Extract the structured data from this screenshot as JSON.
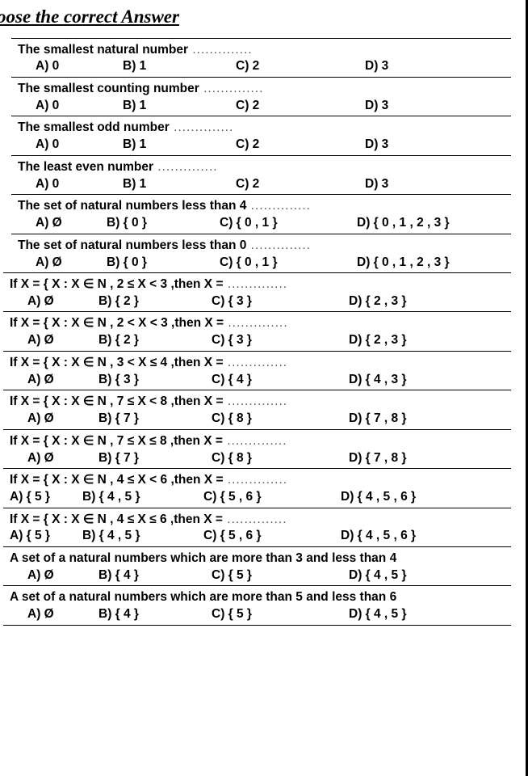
{
  "title": "oose the correct Answer",
  "dots": "..............",
  "questions": [
    {
      "q": "The smallest natural number",
      "a": "A) 0",
      "b": "B) 1",
      "c": "C) 2",
      "d": "D) 3",
      "layout": "std",
      "dots": true
    },
    {
      "q": "The smallest counting number",
      "a": "A) 0",
      "b": "B) 1",
      "c": "C) 2",
      "d": "D) 3",
      "layout": "std",
      "dots": true
    },
    {
      "q": "The smallest odd number",
      "a": "A) 0",
      "b": "B) 1",
      "c": "C) 2",
      "d": "D) 3",
      "layout": "std",
      "dots": true
    },
    {
      "q": "The least even number",
      "a": "A) 0",
      "b": "B) 1",
      "c": "C) 2",
      "d": "D) 3",
      "layout": "std",
      "dots": true
    },
    {
      "q": "The set of natural numbers less than 4",
      "a": "A) Ø",
      "b": "B) { 0 }",
      "c": "C) { 0 , 1 }",
      "d": "D) { 0 , 1 , 2 , 3 }",
      "layout": "wide",
      "dots": true
    },
    {
      "q": "The set of natural numbers less than 0",
      "a": "A) Ø",
      "b": "B) { 0 }",
      "c": "C) { 0 , 1 }",
      "d": "D) { 0 , 1 , 2 , 3 }",
      "layout": "wide",
      "dots": true
    },
    {
      "q": "If X = { X : X ∈ N , 2 ≤ X < 3 ,then X =",
      "a": "A) Ø",
      "b": "B) { 2 }",
      "c": "C) { 3 }",
      "d": "D) { 2 , 3 }",
      "layout": "wide2",
      "noleft": true,
      "dots": true
    },
    {
      "q": "If X = { X : X ∈ N , 2 < X < 3 ,then X =",
      "a": "A) Ø",
      "b": "B) { 2 }",
      "c": "C) { 3 }",
      "d": "D) { 2 , 3 }",
      "layout": "wide2",
      "noleft": true,
      "dots": true
    },
    {
      "q": "If X = { X : X ∈ N , 3 < X ≤ 4 ,then X =",
      "a": "A) Ø",
      "b": "B) { 3 }",
      "c": "C) { 4 }",
      "d": "D) { 4 , 3 }",
      "layout": "wide2",
      "noleft": true,
      "dots": true
    },
    {
      "q": "If X = { X : X ∈ N , 7 ≤ X < 8 ,then X =",
      "a": "A) Ø",
      "b": "B) { 7 }",
      "c": "C) { 8 }",
      "d": "D) { 7 , 8 }",
      "layout": "wide2",
      "noleft": true,
      "dots": true
    },
    {
      "q": "If X = { X : X ∈ N , 7 ≤ X ≤ 8 ,then X =",
      "a": "A) Ø",
      "b": "B) { 7 }",
      "c": "C) { 8 }",
      "d": "D) { 7 , 8 }",
      "layout": "wide2",
      "noleft": true,
      "dots": true
    },
    {
      "q": "If X = { X : X ∈ N , 4 ≤ X < 6 ,then X =",
      "a": "A) { 5 }",
      "b": "B) { 4 , 5 }",
      "c": "C) { 5 , 6 }",
      "d": "D) { 4 , 5 , 6 }",
      "layout": "noleftopt",
      "noleft": true,
      "dots": true
    },
    {
      "q": "If X = { X : X ∈ N , 4 ≤ X ≤ 6 ,then X =",
      "a": "A) { 5 }",
      "b": "B) { 4 , 5 }",
      "c": "C) { 5 , 6 }",
      "d": "D) { 4 , 5 , 6 }",
      "layout": "noleftopt",
      "noleft": true,
      "dots": true
    },
    {
      "q": "A set of a natural numbers which are more than 3 and less than 4",
      "a": "A) Ø",
      "b": "B) { 4 }",
      "c": "C) { 5 }",
      "d": "D) { 4 , 5 }",
      "layout": "wide2",
      "noleft": true,
      "dots": false
    },
    {
      "q": "A set of a natural numbers which are more than 5 and less than 6",
      "a": "A) Ø",
      "b": "B) { 4 }",
      "c": "C) { 5 }",
      "d": "D) { 4 , 5 }",
      "layout": "wide2",
      "noleft": true,
      "dots": false
    }
  ]
}
